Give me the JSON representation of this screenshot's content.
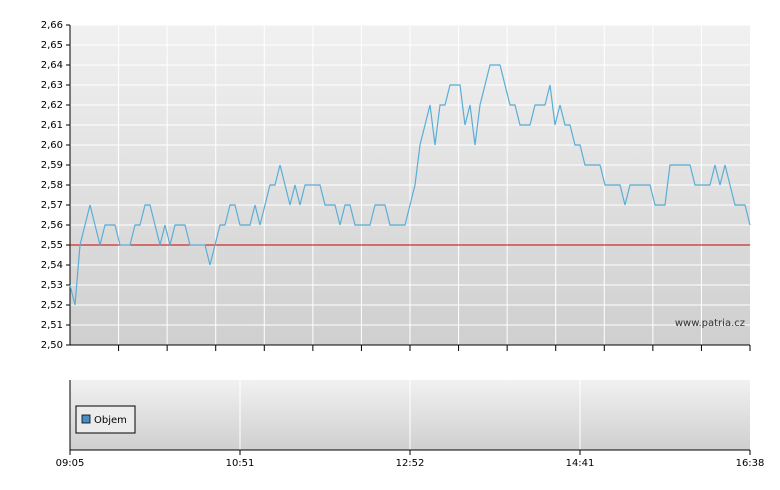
{
  "chart_data": {
    "type": "line",
    "categories": [
      "09:05",
      null,
      null,
      null,
      null,
      null,
      null,
      null,
      null,
      null,
      null,
      null,
      null,
      null,
      null,
      null,
      null,
      null,
      null,
      null,
      null,
      null,
      null,
      null,
      null,
      null,
      null,
      null,
      null,
      null,
      null,
      null,
      null,
      null,
      "10:51",
      null,
      null,
      null,
      null,
      null,
      null,
      null,
      null,
      null,
      null,
      null,
      null,
      null,
      null,
      null,
      null,
      null,
      null,
      null,
      null,
      null,
      null,
      null,
      null,
      null,
      null,
      null,
      null,
      null,
      null,
      null,
      null,
      null,
      "12:52",
      null,
      null,
      null,
      null,
      null,
      null,
      null,
      null,
      null,
      null,
      null,
      null,
      null,
      null,
      null,
      null,
      null,
      null,
      null,
      null,
      null,
      null,
      null,
      null,
      null,
      null,
      null,
      null,
      null,
      null,
      null,
      null,
      null,
      "14:41",
      null,
      null,
      null,
      null,
      null,
      null,
      null,
      null,
      null,
      null,
      null,
      null,
      null,
      null,
      null,
      null,
      null,
      null,
      null,
      null,
      null,
      null,
      null,
      null,
      null,
      null,
      null,
      null,
      null,
      null,
      null,
      null,
      null,
      "16:38"
    ],
    "series": [
      {
        "color": "#5aaed6",
        "values": [
          2.53,
          2.52,
          2.55,
          2.56,
          2.57,
          2.56,
          2.55,
          2.56,
          2.56,
          2.56,
          2.55,
          2.55,
          2.55,
          2.56,
          2.56,
          2.57,
          2.57,
          2.56,
          2.55,
          2.56,
          2.55,
          2.56,
          2.56,
          2.56,
          2.55,
          2.55,
          2.55,
          2.55,
          2.54,
          2.55,
          2.56,
          2.56,
          2.57,
          2.57,
          2.56,
          2.56,
          2.56,
          2.57,
          2.56,
          2.57,
          2.58,
          2.58,
          2.59,
          2.58,
          2.57,
          2.58,
          2.57,
          2.58,
          2.58,
          2.58,
          2.58,
          2.57,
          2.57,
          2.57,
          2.56,
          2.57,
          2.57,
          2.56,
          2.56,
          2.56,
          2.56,
          2.57,
          2.57,
          2.57,
          2.56,
          2.56,
          2.56,
          2.56,
          2.57,
          2.58,
          2.6,
          2.61,
          2.62,
          2.6,
          2.62,
          2.62,
          2.63,
          2.63,
          2.63,
          2.61,
          2.62,
          2.6,
          2.62,
          2.63,
          2.64,
          2.64,
          2.64,
          2.63,
          2.62,
          2.62,
          2.61,
          2.61,
          2.61,
          2.62,
          2.62,
          2.62,
          2.63,
          2.61,
          2.62,
          2.61,
          2.61,
          2.6,
          2.6,
          2.59,
          2.59,
          2.59,
          2.59,
          2.58,
          2.58,
          2.58,
          2.58,
          2.57,
          2.58,
          2.58,
          2.58,
          2.58,
          2.58,
          2.57,
          2.57,
          2.57,
          2.59,
          2.59,
          2.59,
          2.59,
          2.59,
          2.58,
          2.58,
          2.58,
          2.58,
          2.59,
          2.58,
          2.59,
          2.58,
          2.57,
          2.57,
          2.57,
          2.56
        ]
      }
    ],
    "ylim": [
      2.5,
      2.66
    ],
    "yticks": [
      {
        "value": 2.5,
        "label": "2,50"
      },
      {
        "value": 2.51,
        "label": "2,51"
      },
      {
        "value": 2.52,
        "label": "2,52"
      },
      {
        "value": 2.53,
        "label": "2,53"
      },
      {
        "value": 2.54,
        "label": "2,54"
      },
      {
        "value": 2.55,
        "label": "2,55"
      },
      {
        "value": 2.56,
        "label": "2,56"
      },
      {
        "value": 2.57,
        "label": "2,57"
      },
      {
        "value": 2.58,
        "label": "2,58"
      },
      {
        "value": 2.59,
        "label": "2,59"
      },
      {
        "value": 2.6,
        "label": "2,60"
      },
      {
        "value": 2.61,
        "label": "2,61"
      },
      {
        "value": 2.62,
        "label": "2,62"
      },
      {
        "value": 2.63,
        "label": "2,63"
      },
      {
        "value": 2.64,
        "label": "2,64"
      },
      {
        "value": 2.65,
        "label": "2,65"
      },
      {
        "value": 2.66,
        "label": "2,66"
      }
    ],
    "grid": true,
    "reference_line": {
      "value": 2.55,
      "color": "#cc0000"
    },
    "watermark": "www.patria.cz",
    "volume_legend": {
      "name": "Objem",
      "color": "#4a8ec6"
    }
  }
}
